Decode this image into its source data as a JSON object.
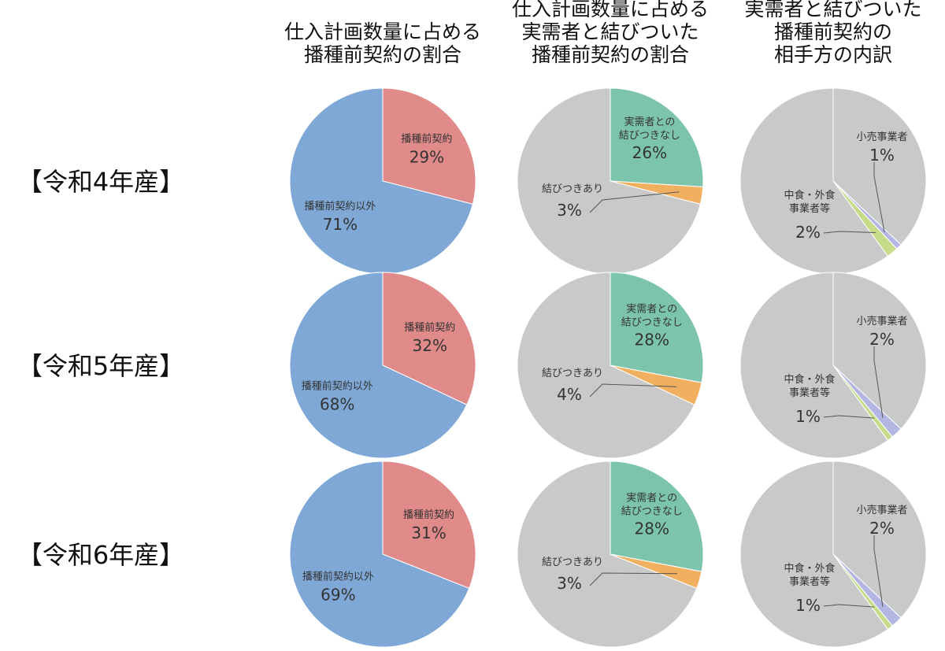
{
  "chart_data": {
    "type": "pie",
    "columns": [
      {
        "title_lines": [
          "仕入計画数量に占める",
          "播種前契約の割合"
        ]
      },
      {
        "title_lines": [
          "仕入計画数量に占める",
          "実需者と結びついた",
          "播種前契約の割合"
        ]
      },
      {
        "title_lines": [
          "実需者と結びついた",
          "播種前契約の",
          "相手方の内訳"
        ]
      }
    ],
    "rows": [
      {
        "label": "【令和4年産】",
        "pies": [
          {
            "slices": [
              {
                "name": "播種前契約",
                "pct_label": "29%",
                "value": 29,
                "color": "#e08a8a"
              },
              {
                "name": "播種前契約以外",
                "pct_label": "71%",
                "value": 71,
                "color": "#7fa8d6"
              }
            ]
          },
          {
            "slices": [
              {
                "name": "実需者との結びつきなし",
                "pct_label": "26%",
                "value": 26,
                "color": "#7dc4ad"
              },
              {
                "name": "結びつきあり",
                "pct_label": "3%",
                "value": 3,
                "color": "#f0b060"
              },
              {
                "name": "",
                "pct_label": "",
                "value": 71,
                "color": "#c9c9c9"
              }
            ]
          },
          {
            "slices": [
              {
                "name": "",
                "pct_label": "",
                "value": 37,
                "color": "#c9c9c9"
              },
              {
                "name": "小売事業者",
                "pct_label": "1%",
                "value": 1,
                "color": "#b3b6e3"
              },
              {
                "name": "中食・外食事業者等",
                "pct_label": "2%",
                "value": 2,
                "color": "#c6dc8a"
              },
              {
                "name": "",
                "pct_label": "",
                "value": 60,
                "color": "#c9c9c9"
              }
            ]
          }
        ]
      },
      {
        "label": "【令和5年産】",
        "pies": [
          {
            "slices": [
              {
                "name": "播種前契約",
                "pct_label": "32%",
                "value": 32,
                "color": "#e08a8a"
              },
              {
                "name": "播種前契約以外",
                "pct_label": "68%",
                "value": 68,
                "color": "#7fa8d6"
              }
            ]
          },
          {
            "slices": [
              {
                "name": "実需者との結びつきなし",
                "pct_label": "28%",
                "value": 28,
                "color": "#7dc4ad"
              },
              {
                "name": "結びつきあり",
                "pct_label": "4%",
                "value": 4,
                "color": "#f0b060"
              },
              {
                "name": "",
                "pct_label": "",
                "value": 68,
                "color": "#c9c9c9"
              }
            ]
          },
          {
            "slices": [
              {
                "name": "",
                "pct_label": "",
                "value": 37,
                "color": "#c9c9c9"
              },
              {
                "name": "小売事業者",
                "pct_label": "2%",
                "value": 2,
                "color": "#b3b6e3"
              },
              {
                "name": "中食・外食事業者等",
                "pct_label": "1%",
                "value": 1,
                "color": "#c6dc8a"
              },
              {
                "name": "",
                "pct_label": "",
                "value": 60,
                "color": "#c9c9c9"
              }
            ]
          }
        ]
      },
      {
        "label": "【令和6年産】",
        "pies": [
          {
            "slices": [
              {
                "name": "播種前契約",
                "pct_label": "31%",
                "value": 31,
                "color": "#e08a8a"
              },
              {
                "name": "播種前契約以外",
                "pct_label": "69%",
                "value": 69,
                "color": "#7fa8d6"
              }
            ]
          },
          {
            "slices": [
              {
                "name": "実需者との結びつきなし",
                "pct_label": "28%",
                "value": 28,
                "color": "#7dc4ad"
              },
              {
                "name": "結びつきあり",
                "pct_label": "3%",
                "value": 3,
                "color": "#f0b060"
              },
              {
                "name": "",
                "pct_label": "",
                "value": 69,
                "color": "#c9c9c9"
              }
            ]
          },
          {
            "slices": [
              {
                "name": "",
                "pct_label": "",
                "value": 37,
                "color": "#c9c9c9"
              },
              {
                "name": "小売事業者",
                "pct_label": "2%",
                "value": 2,
                "color": "#b3b6e3"
              },
              {
                "name": "中食・外食事業者等",
                "pct_label": "1%",
                "value": 1,
                "color": "#c6dc8a"
              },
              {
                "name": "",
                "pct_label": "",
                "value": 60,
                "color": "#c9c9c9"
              }
            ]
          }
        ]
      }
    ]
  }
}
